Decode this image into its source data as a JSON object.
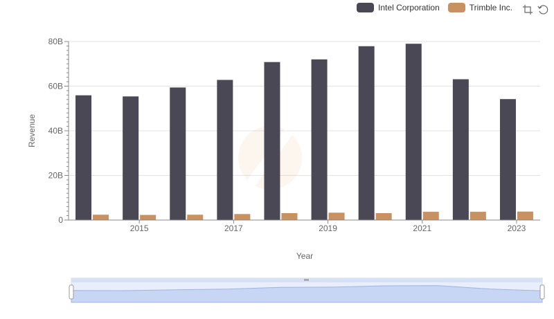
{
  "legend": {
    "items": [
      {
        "label": "Intel Corporation",
        "color": "#4a4855"
      },
      {
        "label": "Trimble Inc.",
        "color": "#c9915f"
      }
    ]
  },
  "toolbox": {
    "icons": [
      "zoom-icon",
      "restore-icon"
    ]
  },
  "chart_data": {
    "type": "bar",
    "xlabel": "Year",
    "ylabel": "Revenue",
    "categories": [
      "2014",
      "2015",
      "2016",
      "2017",
      "2018",
      "2019",
      "2020",
      "2021",
      "2022",
      "2023"
    ],
    "x_tick_labels": [
      "2015",
      "2017",
      "2019",
      "2021",
      "2023"
    ],
    "y_tick_labels": [
      "0",
      "20B",
      "40B",
      "60B",
      "80B"
    ],
    "ylim": [
      0,
      80000000000
    ],
    "grid": true,
    "legend_position": "top-right",
    "series": [
      {
        "name": "Intel Corporation",
        "color": "#4a4855",
        "values": [
          55900000000,
          55400000000,
          59400000000,
          62800000000,
          70800000000,
          72000000000,
          77900000000,
          79000000000,
          63100000000,
          54200000000
        ]
      },
      {
        "name": "Trimble Inc.",
        "color": "#c9915f",
        "values": [
          2400000000,
          2300000000,
          2400000000,
          2700000000,
          3100000000,
          3300000000,
          3100000000,
          3700000000,
          3700000000,
          3800000000
        ]
      }
    ]
  }
}
